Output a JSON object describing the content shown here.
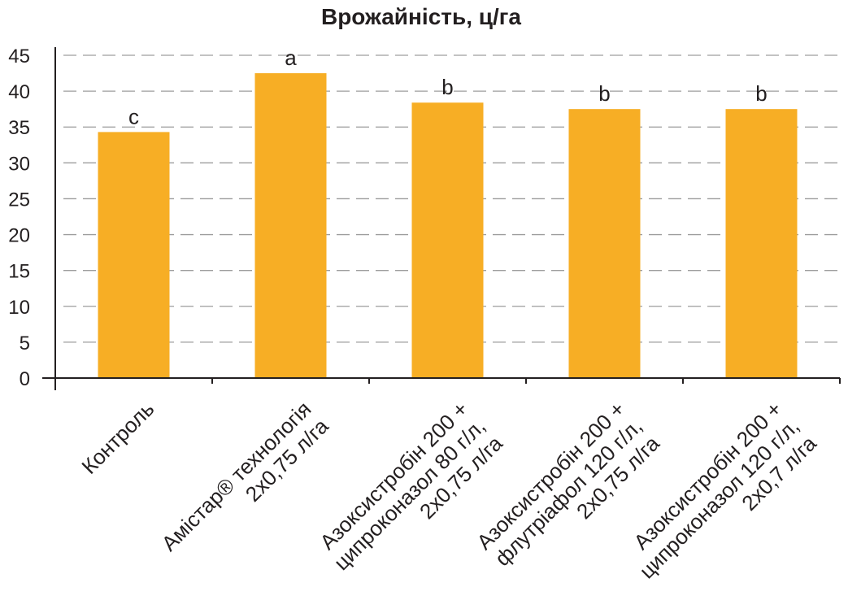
{
  "chart_data": {
    "type": "bar",
    "title": "Врожайність, ц/га",
    "xlabel": "",
    "ylabel": "",
    "ylim": [
      0,
      45
    ],
    "yticks": [
      0,
      5,
      10,
      15,
      20,
      25,
      30,
      35,
      40,
      45
    ],
    "grid": true,
    "bar_color": "#f7ae25",
    "categories": [
      [
        "Контроль"
      ],
      [
        "Амістар® технологія",
        "2х0,75 л/га"
      ],
      [
        "Азоксистробін 200 +",
        "ципроконазол 80 г/л,",
        "2х0,75 л/га"
      ],
      [
        "Азоксистробін 200 +",
        "флутріафол 120 г/л,",
        "2х0,75 л/га"
      ],
      [
        "Азоксистробін 200 +",
        "ципроконазол 120 г/л,",
        "2х0,7 л/га"
      ]
    ],
    "values": [
      34.3,
      42.5,
      38.4,
      37.5,
      37.5
    ],
    "significance_letters": [
      "c",
      "a",
      "b",
      "b",
      "b"
    ]
  }
}
